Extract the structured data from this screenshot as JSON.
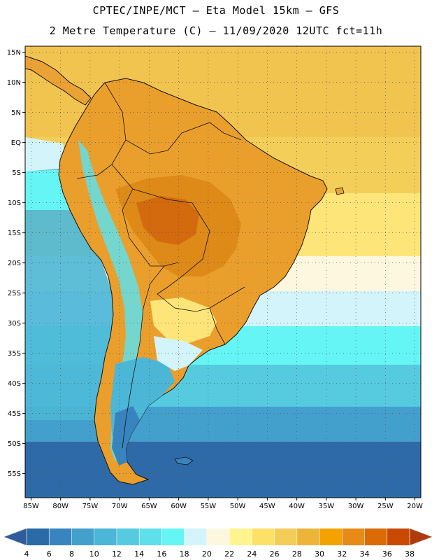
{
  "header": {
    "line1": "CPTEC/INPE/MCT –  Eta Model 15km – GFS",
    "line2": "2 Metre Temperature (C) – 11/09/2020 12UTC fct=11h"
  },
  "map": {
    "lon_range": [
      -86,
      -19
    ],
    "lat_range": [
      -59,
      16
    ],
    "lat_ticks": [
      "15N",
      "10N",
      "5N",
      "EQ",
      "5S",
      "10S",
      "15S",
      "20S",
      "25S",
      "30S",
      "35S",
      "40S",
      "45S",
      "50S",
      "55S"
    ],
    "lat_values": [
      15,
      10,
      5,
      0,
      -5,
      -10,
      -15,
      -20,
      -25,
      -30,
      -35,
      -40,
      -45,
      -50,
      -55
    ],
    "lon_ticks": [
      "85W",
      "80W",
      "75W",
      "70W",
      "65W",
      "60W",
      "55W",
      "50W",
      "45W",
      "40W",
      "35W",
      "30W",
      "25W",
      "20W"
    ],
    "lon_values": [
      -85,
      -80,
      -75,
      -70,
      -65,
      -60,
      -55,
      -50,
      -45,
      -40,
      -35,
      -30,
      -25,
      -20
    ]
  },
  "colorbar": {
    "labels": [
      "4",
      "6",
      "8",
      "10",
      "12",
      "14",
      "16",
      "18",
      "20",
      "22",
      "24",
      "26",
      "28",
      "30",
      "32",
      "34",
      "36",
      "38"
    ],
    "colors": [
      "#2a6aa6",
      "#3784bf",
      "#43a0cd",
      "#4cb6d6",
      "#56cbe0",
      "#5fdfea",
      "#66f5f5",
      "#d3f4fb",
      "#fdf7df",
      "#fff48e",
      "#fde067",
      "#f4cc58",
      "#edb537",
      "#f3a200",
      "#e68a18",
      "#da6b06",
      "#c84a00"
    ],
    "below_color": "#2f5c9c",
    "above_color": "#b13a0c"
  }
}
